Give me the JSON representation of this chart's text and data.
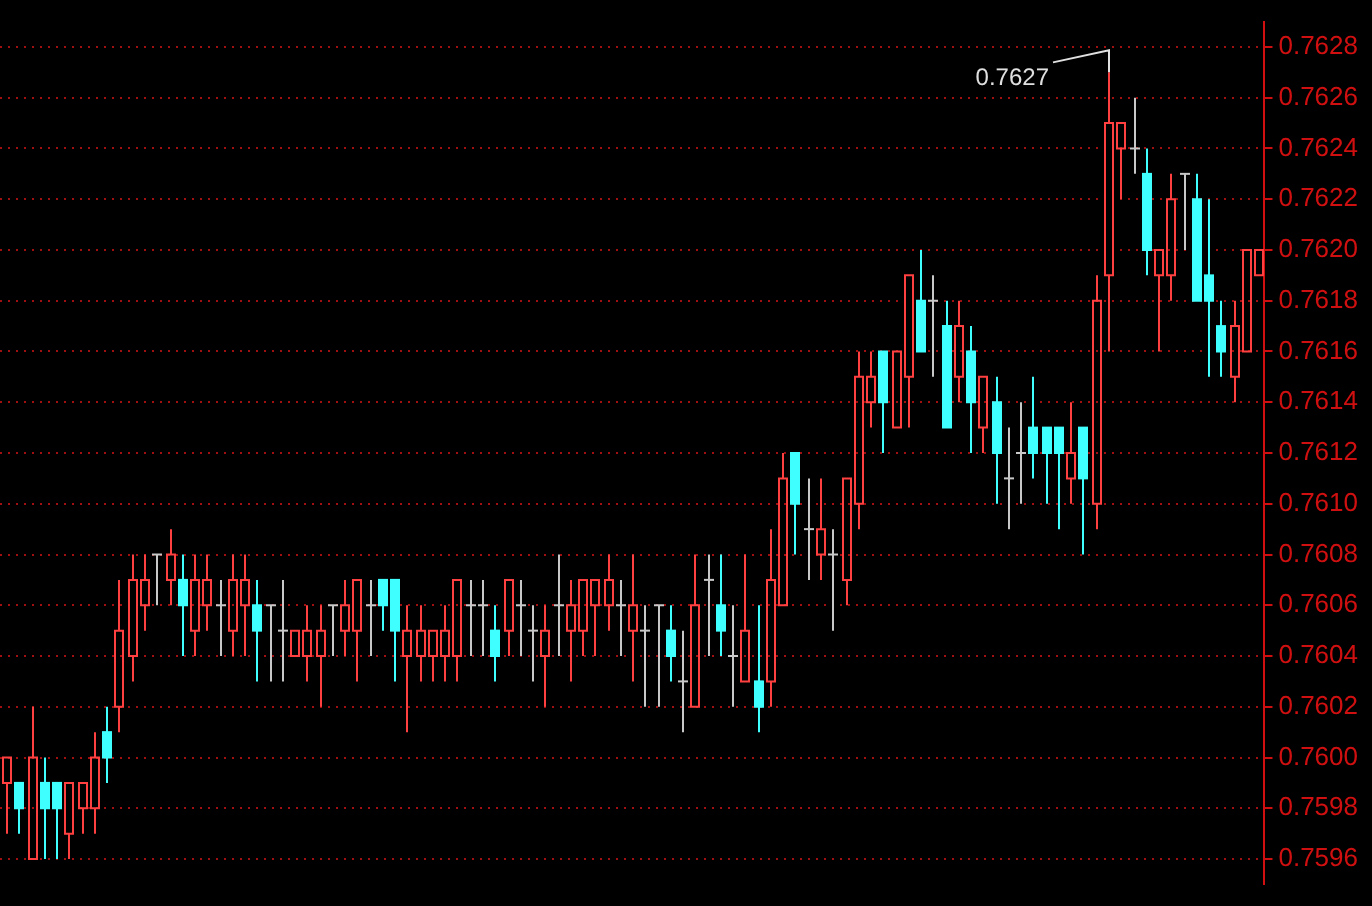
{
  "chart_data": {
    "type": "candlestick",
    "categories": [
      null,
      null,
      null,
      null,
      null,
      null,
      null,
      null,
      null,
      null,
      null,
      null,
      null,
      null,
      null,
      null,
      null,
      null,
      null,
      null,
      null,
      null,
      null,
      null,
      null,
      null,
      null,
      null,
      null,
      null,
      null,
      null,
      null,
      null,
      null,
      null,
      null,
      null,
      null,
      null,
      null,
      null,
      null,
      null,
      null,
      null,
      null,
      null,
      null,
      null,
      null,
      null,
      null,
      null,
      null,
      null,
      null,
      null,
      null,
      null,
      null,
      null,
      null,
      null,
      null,
      null,
      null,
      null,
      null,
      null,
      null,
      null,
      null,
      null,
      null,
      null,
      null,
      null,
      null,
      null,
      null,
      null,
      null,
      null,
      null,
      null,
      null,
      null,
      null,
      null,
      null,
      null,
      null,
      null,
      null,
      null,
      null,
      null,
      null,
      null,
      null
    ],
    "ohlc": [
      [
        0.7599,
        0.76,
        0.7597,
        0.76
      ],
      [
        0.7599,
        0.7599,
        0.7597,
        0.7598
      ],
      [
        0.7596,
        0.7602,
        0.7596,
        0.76
      ],
      [
        0.7599,
        0.76,
        0.7596,
        0.7598
      ],
      [
        0.7599,
        0.7599,
        0.7596,
        0.7598
      ],
      [
        0.7597,
        0.7599,
        0.7596,
        0.7599
      ],
      [
        0.7598,
        0.7599,
        0.7597,
        0.7599
      ],
      [
        0.7598,
        0.7601,
        0.7597,
        0.76
      ],
      [
        0.7601,
        0.7602,
        0.7599,
        0.76
      ],
      [
        0.7602,
        0.7607,
        0.7601,
        0.7605
      ],
      [
        0.7604,
        0.7608,
        0.7603,
        0.7607
      ],
      [
        0.7606,
        0.7608,
        0.7605,
        0.7607
      ],
      [
        0.7608,
        0.7608,
        0.7606,
        0.7608
      ],
      [
        0.7607,
        0.7609,
        0.7606,
        0.7608
      ],
      [
        0.7607,
        0.7608,
        0.7604,
        0.7606
      ],
      [
        0.7605,
        0.7608,
        0.7604,
        0.7607
      ],
      [
        0.7606,
        0.7608,
        0.7605,
        0.7607
      ],
      [
        0.7606,
        0.7607,
        0.7604,
        0.7606
      ],
      [
        0.7605,
        0.7608,
        0.7604,
        0.7607
      ],
      [
        0.7606,
        0.7608,
        0.7604,
        0.7607
      ],
      [
        0.7606,
        0.7607,
        0.7603,
        0.7605
      ],
      [
        0.7606,
        0.7606,
        0.7603,
        0.7606
      ],
      [
        0.7605,
        0.7607,
        0.7603,
        0.7605
      ],
      [
        0.7604,
        0.7605,
        0.7604,
        0.7605
      ],
      [
        0.7604,
        0.7606,
        0.7603,
        0.7605
      ],
      [
        0.7604,
        0.7606,
        0.7602,
        0.7605
      ],
      [
        0.7606,
        0.7606,
        0.7604,
        0.7606
      ],
      [
        0.7605,
        0.7607,
        0.7604,
        0.7606
      ],
      [
        0.7605,
        0.7607,
        0.7603,
        0.7607
      ],
      [
        0.7606,
        0.7607,
        0.7604,
        0.7606
      ],
      [
        0.7607,
        0.7607,
        0.7605,
        0.7606
      ],
      [
        0.7607,
        0.7607,
        0.7603,
        0.7605
      ],
      [
        0.7604,
        0.7606,
        0.7601,
        0.7605
      ],
      [
        0.7604,
        0.7606,
        0.7603,
        0.7605
      ],
      [
        0.7604,
        0.7605,
        0.7603,
        0.7605
      ],
      [
        0.7604,
        0.7606,
        0.7603,
        0.7605
      ],
      [
        0.7604,
        0.7607,
        0.7603,
        0.7607
      ],
      [
        0.7606,
        0.7607,
        0.7604,
        0.7606
      ],
      [
        0.7606,
        0.7607,
        0.7604,
        0.7606
      ],
      [
        0.7605,
        0.7606,
        0.7603,
        0.7604
      ],
      [
        0.7605,
        0.7607,
        0.7604,
        0.7607
      ],
      [
        0.7606,
        0.7607,
        0.7604,
        0.7606
      ],
      [
        0.7605,
        0.7606,
        0.7603,
        0.7605
      ],
      [
        0.7604,
        0.7606,
        0.7602,
        0.7605
      ],
      [
        0.7606,
        0.7608,
        0.7604,
        0.7606
      ],
      [
        0.7605,
        0.7607,
        0.7603,
        0.7606
      ],
      [
        0.7605,
        0.7607,
        0.7604,
        0.7607
      ],
      [
        0.7606,
        0.7607,
        0.7604,
        0.7607
      ],
      [
        0.7606,
        0.7608,
        0.7605,
        0.7607
      ],
      [
        0.7606,
        0.7607,
        0.7604,
        0.7606
      ],
      [
        0.7605,
        0.7608,
        0.7603,
        0.7606
      ],
      [
        0.7605,
        0.7606,
        0.7602,
        0.7605
      ],
      [
        0.7606,
        0.7606,
        0.7602,
        0.7606
      ],
      [
        0.7605,
        0.7606,
        0.7603,
        0.7604
      ],
      [
        0.7603,
        0.7605,
        0.7601,
        0.7603
      ],
      [
        0.7602,
        0.7608,
        0.7602,
        0.7606
      ],
      [
        0.7607,
        0.7608,
        0.7604,
        0.7607
      ],
      [
        0.7606,
        0.7608,
        0.7604,
        0.7605
      ],
      [
        0.7604,
        0.7606,
        0.7602,
        0.7604
      ],
      [
        0.7603,
        0.7608,
        0.7603,
        0.7605
      ],
      [
        0.7603,
        0.7606,
        0.7601,
        0.7602
      ],
      [
        0.7603,
        0.7609,
        0.7602,
        0.7607
      ],
      [
        0.7606,
        0.7612,
        0.7606,
        0.7611
      ],
      [
        0.7612,
        0.7612,
        0.7608,
        0.761
      ],
      [
        0.7609,
        0.7611,
        0.7607,
        0.7609
      ],
      [
        0.7608,
        0.7611,
        0.7607,
        0.7609
      ],
      [
        0.7608,
        0.7609,
        0.7605,
        0.7608
      ],
      [
        0.7607,
        0.7611,
        0.7606,
        0.7611
      ],
      [
        0.761,
        0.7616,
        0.7609,
        0.7615
      ],
      [
        0.7614,
        0.7616,
        0.7613,
        0.7615
      ],
      [
        0.7616,
        0.7616,
        0.7612,
        0.7614
      ],
      [
        0.7613,
        0.7616,
        0.7613,
        0.7616
      ],
      [
        0.7615,
        0.7619,
        0.7613,
        0.7619
      ],
      [
        0.7618,
        0.762,
        0.7616,
        0.7616
      ],
      [
        0.7618,
        0.7619,
        0.7615,
        0.7618
      ],
      [
        0.7617,
        0.7618,
        0.7613,
        0.7613
      ],
      [
        0.7615,
        0.7618,
        0.7614,
        0.7617
      ],
      [
        0.7616,
        0.7617,
        0.7612,
        0.7614
      ],
      [
        0.7613,
        0.7615,
        0.7612,
        0.7615
      ],
      [
        0.7614,
        0.7615,
        0.761,
        0.7612
      ],
      [
        0.7611,
        0.7613,
        0.7609,
        0.7611
      ],
      [
        0.7612,
        0.7614,
        0.761,
        0.7612
      ],
      [
        0.7613,
        0.7615,
        0.7611,
        0.7612
      ],
      [
        0.7613,
        0.7613,
        0.761,
        0.7612
      ],
      [
        0.7613,
        0.7613,
        0.7609,
        0.7612
      ],
      [
        0.7611,
        0.7614,
        0.761,
        0.7612
      ],
      [
        0.7613,
        0.7613,
        0.7608,
        0.7611
      ],
      [
        0.761,
        0.7619,
        0.7609,
        0.7618
      ],
      [
        0.7619,
        0.7627,
        0.7616,
        0.7625
      ],
      [
        0.7624,
        0.7625,
        0.7622,
        0.7625
      ],
      [
        0.7624,
        0.7626,
        0.7623,
        0.7624
      ],
      [
        0.7623,
        0.7624,
        0.7619,
        0.762
      ],
      [
        0.7619,
        0.762,
        0.7616,
        0.762
      ],
      [
        0.7619,
        0.7623,
        0.7618,
        0.7622
      ],
      [
        0.7623,
        0.7623,
        0.762,
        0.7623
      ],
      [
        0.7622,
        0.7623,
        0.7618,
        0.7618
      ],
      [
        0.7619,
        0.7622,
        0.7615,
        0.7618
      ],
      [
        0.7617,
        0.7618,
        0.7615,
        0.7616
      ],
      [
        0.7615,
        0.7618,
        0.7614,
        0.7617
      ],
      [
        0.7616,
        0.762,
        0.7616,
        0.762
      ],
      [
        0.7619,
        0.762,
        0.7619,
        0.762
      ]
    ],
    "colors": [
      "#ff4040",
      "#40ffff",
      "#ff4040",
      "#40ffff",
      "#40ffff",
      "#ff4040",
      "#ff4040",
      "#ff4040",
      "#40ffff",
      "#ff4040",
      "#ff4040",
      "#ff4040",
      "#c8c8c8",
      "#ff4040",
      "#40ffff",
      "#ff4040",
      "#ff4040",
      "#c8c8c8",
      "#ff4040",
      "#ff4040",
      "#40ffff",
      "#c8c8c8",
      "#c8c8c8",
      "#ff4040",
      "#ff4040",
      "#ff4040",
      "#c8c8c8",
      "#ff4040",
      "#ff4040",
      "#c8c8c8",
      "#40ffff",
      "#40ffff",
      "#ff4040",
      "#ff4040",
      "#ff4040",
      "#ff4040",
      "#ff4040",
      "#c8c8c8",
      "#c8c8c8",
      "#40ffff",
      "#ff4040",
      "#c8c8c8",
      "#c8c8c8",
      "#ff4040",
      "#c8c8c8",
      "#ff4040",
      "#ff4040",
      "#ff4040",
      "#ff4040",
      "#c8c8c8",
      "#ff4040",
      "#c8c8c8",
      "#c8c8c8",
      "#40ffff",
      "#c8c8c8",
      "#ff4040",
      "#c8c8c8",
      "#40ffff",
      "#c8c8c8",
      "#ff4040",
      "#40ffff",
      "#ff4040",
      "#ff4040",
      "#40ffff",
      "#c8c8c8",
      "#ff4040",
      "#c8c8c8",
      "#ff4040",
      "#ff4040",
      "#ff4040",
      "#40ffff",
      "#ff4040",
      "#ff4040",
      "#40ffff",
      "#c8c8c8",
      "#40ffff",
      "#ff4040",
      "#40ffff",
      "#ff4040",
      "#40ffff",
      "#c8c8c8",
      "#c8c8c8",
      "#40ffff",
      "#40ffff",
      "#40ffff",
      "#ff4040",
      "#40ffff",
      "#ff4040",
      "#ff4040",
      "#ff4040",
      "#c8c8c8",
      "#40ffff",
      "#ff4040",
      "#ff4040",
      "#c8c8c8",
      "#40ffff",
      "#40ffff",
      "#40ffff",
      "#ff4040",
      "#ff4040",
      "#ff4040"
    ],
    "ylim": [
      0.7595,
      0.7629
    ],
    "yticks": [
      0.7596,
      0.7598,
      {
        "value": 0.76,
        "label": "0.7600"
      },
      0.7602,
      0.7604,
      0.7606,
      0.7608,
      {
        "value": 0.761,
        "label": "0.7610"
      },
      0.7612,
      0.7614,
      0.7616,
      0.7618,
      {
        "value": 0.762,
        "label": "0.7620"
      },
      0.7622,
      0.7624,
      0.7626,
      0.7628
    ],
    "annotations": [
      "0.7627"
    ],
    "grid": "y",
    "tick_labels": "y"
  }
}
